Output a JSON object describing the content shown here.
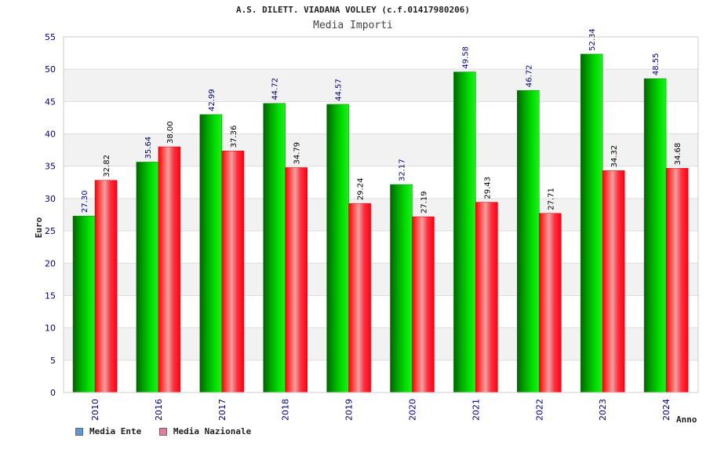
{
  "chart_data": {
    "type": "bar",
    "title": "A.S. DILETT. VIADANA VOLLEY (c.f.01417980206)",
    "subtitle": "Media Importi",
    "xlabel": "Anno",
    "ylabel": "Euro",
    "ylim": [
      0,
      55
    ],
    "yticks": [
      0,
      5,
      10,
      15,
      20,
      25,
      30,
      35,
      40,
      45,
      50,
      55
    ],
    "ytick_labels": [
      "0",
      "5",
      "10",
      "15",
      "20",
      "25",
      "30",
      "35",
      "40",
      "45",
      "50",
      "55"
    ],
    "categories": [
      "2010",
      "2016",
      "2017",
      "2018",
      "2019",
      "2020",
      "2021",
      "2022",
      "2023",
      "2024"
    ],
    "series": [
      {
        "name": "Media Ente",
        "legend_color": "#5b9bd5",
        "values": [
          27.3,
          35.64,
          42.99,
          44.72,
          44.57,
          32.17,
          49.58,
          46.72,
          52.34,
          48.55
        ],
        "labels": [
          "27.30",
          "35.64",
          "42.99",
          "44.72",
          "44.57",
          "32.17",
          "49.58",
          "46.72",
          "52.34",
          "48.55"
        ]
      },
      {
        "name": "Media Nazionale",
        "legend_color": "#e07fa0",
        "values": [
          32.82,
          38.0,
          37.36,
          34.79,
          29.24,
          27.19,
          29.43,
          27.71,
          34.32,
          34.68
        ],
        "labels": [
          "32.82",
          "38.00",
          "37.36",
          "34.79",
          "29.24",
          "27.19",
          "29.43",
          "27.71",
          "34.32",
          "34.68"
        ]
      }
    ]
  }
}
